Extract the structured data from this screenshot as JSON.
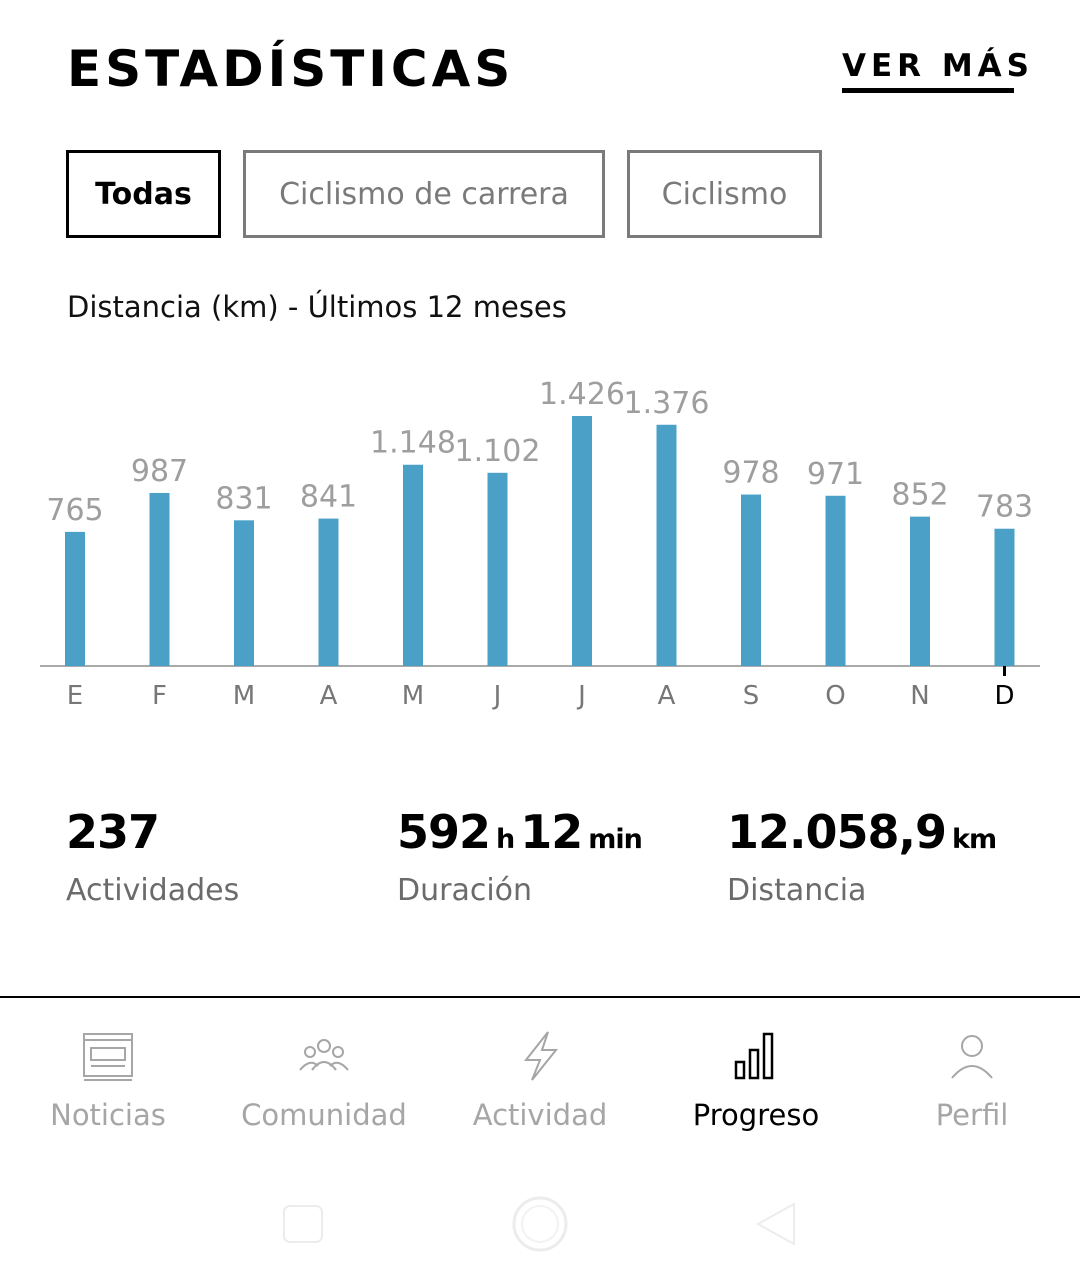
{
  "header": {
    "title": "ESTADÍSTICAS",
    "see_more": "VER MÁS"
  },
  "filters": [
    {
      "label": "Todas",
      "active": true
    },
    {
      "label": "Ciclismo de carrera",
      "active": false
    },
    {
      "label": "Ciclismo",
      "active": false
    }
  ],
  "chart_subtitle": "Distancia (km) - Últimos 12 meses",
  "chart_data": {
    "type": "bar",
    "title": "Distancia (km) - Últimos 12 meses",
    "categories": [
      "E",
      "F",
      "M",
      "A",
      "M",
      "J",
      "J",
      "A",
      "S",
      "O",
      "N",
      "D"
    ],
    "values": [
      765,
      987,
      831,
      841,
      1148,
      1102,
      1426,
      1376,
      978,
      971,
      852,
      783
    ],
    "value_labels": [
      "765",
      "987",
      "831",
      "841",
      "1.148",
      "1.102",
      "1.426",
      "1.376",
      "978",
      "971",
      "852",
      "783"
    ],
    "current_index": 11,
    "ylim": [
      0,
      1426
    ],
    "xlabel": "",
    "ylabel": "",
    "bar_color": "#4aa0c6"
  },
  "stats": {
    "activities": {
      "value": "237",
      "label": "Actividades"
    },
    "duration": {
      "hours": "592",
      "hours_unit": "h",
      "minutes": "12",
      "minutes_unit": "min",
      "label": "Duración"
    },
    "distance": {
      "value": "12.058,9",
      "unit": "km",
      "label": "Distancia"
    }
  },
  "nav": [
    {
      "label": "Noticias",
      "icon": "newspaper-icon",
      "active": false
    },
    {
      "label": "Comunidad",
      "icon": "community-icon",
      "active": false
    },
    {
      "label": "Actividad",
      "icon": "lightning-icon",
      "active": false
    },
    {
      "label": "Progreso",
      "icon": "bar-chart-icon",
      "active": true
    },
    {
      "label": "Perfil",
      "icon": "user-icon",
      "active": false
    }
  ],
  "colors": {
    "accent": "#4aa0c6",
    "text": "#000000",
    "muted": "#a6a6a6"
  }
}
